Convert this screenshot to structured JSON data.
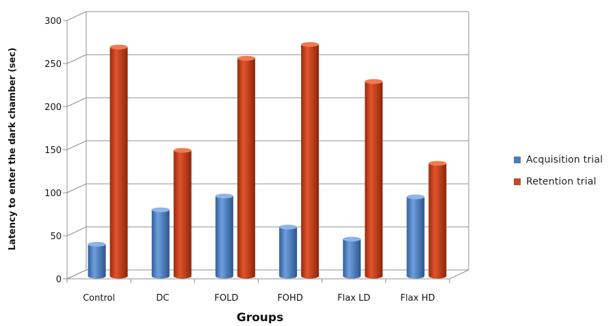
{
  "chart_data": {
    "type": "bar",
    "title": "",
    "xlabel": "Groups",
    "ylabel": "Latency to enter the dark chamber (sec)",
    "ylim": [
      0,
      300
    ],
    "yticks": [
      "0",
      "50",
      "100",
      "150",
      "200",
      "250",
      "300"
    ],
    "categories": [
      "Control",
      "DC",
      "FOLD",
      "FOHD",
      "Flax LD",
      "Flax HD"
    ],
    "series": [
      {
        "name": "Acquisition trial",
        "color": "#4a7ebb",
        "values": [
          37,
          77,
          93,
          57,
          43,
          92
        ]
      },
      {
        "name": "Retention trial",
        "color": "#be4b2a",
        "values": [
          266,
          146,
          253,
          269,
          226,
          131
        ]
      }
    ],
    "grid": true,
    "legend_position": "right",
    "style": "3d-cylinder"
  }
}
